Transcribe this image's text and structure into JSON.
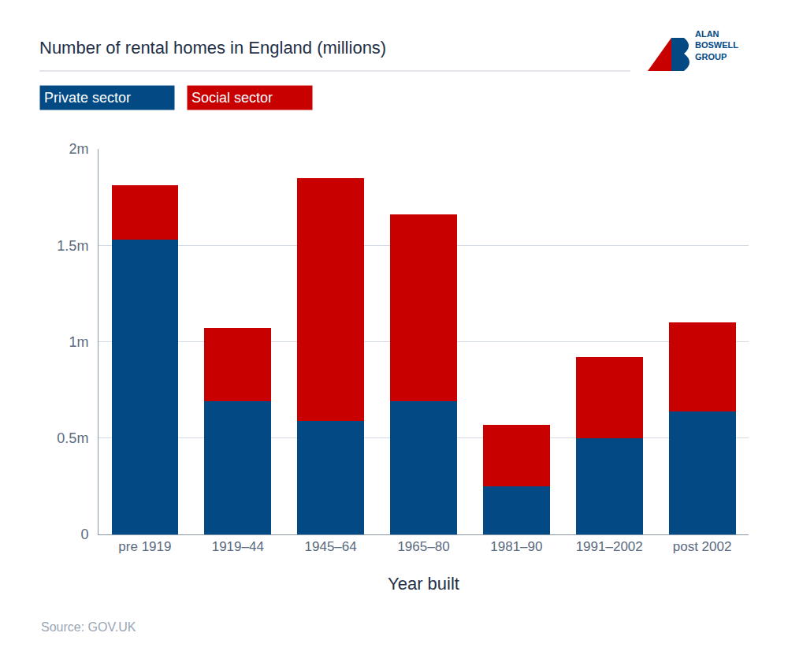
{
  "chart_data": {
    "type": "bar",
    "title": "Number of rental homes in England (millions)",
    "x_label": "Year built",
    "source": "Source: GOV.UK",
    "logo": [
      "ALAN",
      "BOSWELL",
      "GROUP"
    ],
    "categories": [
      "pre 1919",
      "1919–44",
      "1945–64",
      "1965–80",
      "1981–90",
      "1991–2002",
      "post 2002"
    ],
    "series": [
      {
        "name": "Private sector",
        "color": "#034a85",
        "values": [
          1.53,
          0.69,
          0.59,
          0.69,
          0.25,
          0.5,
          0.64
        ]
      },
      {
        "name": "Social sector",
        "color": "#c80000",
        "values": [
          0.28,
          0.38,
          1.26,
          0.97,
          0.32,
          0.42,
          0.46
        ]
      }
    ],
    "stacked": true,
    "ylim": [
      0,
      2
    ],
    "yticks": [
      0,
      {
        "value": 0.5,
        "label": "0.5m"
      },
      {
        "value": 1,
        "label": "1m"
      },
      {
        "value": 1.5,
        "label": "1.5m"
      },
      {
        "value": 2,
        "label": "2m"
      }
    ],
    "grid": true,
    "legend": "top left"
  }
}
